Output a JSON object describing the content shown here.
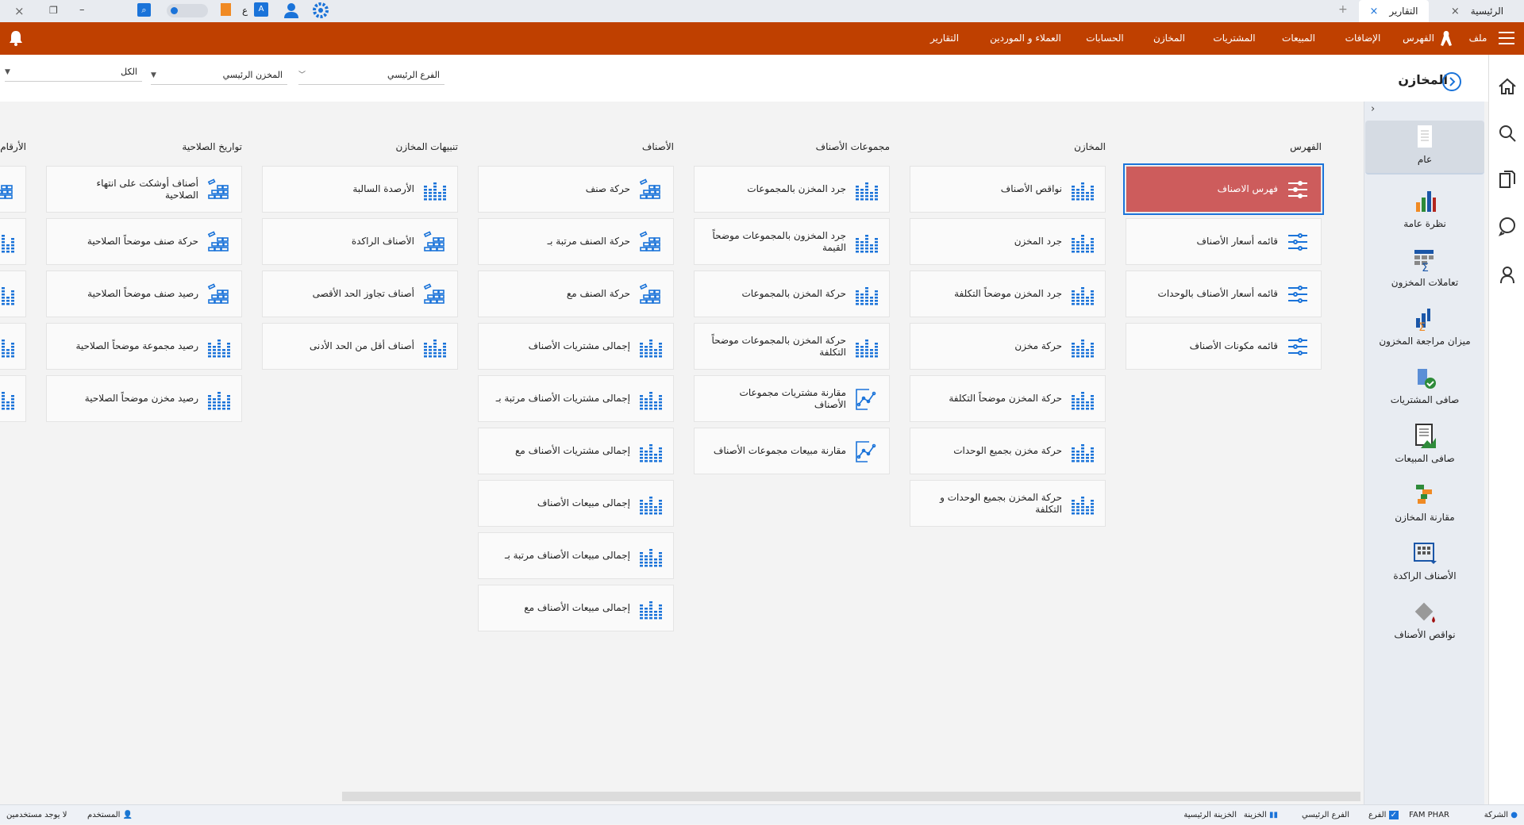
{
  "window": {
    "tabs": [
      {
        "label": "الرئيسية",
        "active": false
      },
      {
        "label": "التقارير",
        "active": true
      }
    ],
    "new_tab": "+",
    "close": "×",
    "restore": "❐",
    "minimize": "–",
    "lang_char": "ع"
  },
  "menu": {
    "items": [
      "ملف",
      "الفهرس",
      "الإضافات",
      "المبيعات",
      "المشتريات",
      "المخازن",
      "الحسابات",
      "العملاء و الموردين",
      "التقارير"
    ]
  },
  "page": {
    "title": "المخازن"
  },
  "filters": {
    "branch": "الفرع الرئيسي",
    "store": "المخزن الرئيسي",
    "all": "الكل"
  },
  "colors": {
    "accent": "#bf4000",
    "selected": "#cd5c5c",
    "icon_blue": "#1a73d9"
  },
  "columns": [
    {
      "title": "الفهرس",
      "items": [
        {
          "label": "فهرس الاصناف",
          "icon": "sliders",
          "selected": true
        },
        {
          "label": "قائمه أسعار الأصناف",
          "icon": "sliders"
        },
        {
          "label": "قائمه أسعار الأصناف بالوحدات",
          "icon": "sliders"
        },
        {
          "label": "قائمه مكونات الأصناف",
          "icon": "sliders"
        }
      ]
    },
    {
      "title": "المخازن",
      "items": [
        {
          "label": "نواقص الأصناف",
          "icon": "bars"
        },
        {
          "label": "جرد المخزن",
          "icon": "bars"
        },
        {
          "label": "جرد المخزن موضحاً التكلفة",
          "icon": "bars"
        },
        {
          "label": "حركة مخزن",
          "icon": "bars"
        },
        {
          "label": "حركة المخزن موضحاً التكلفة",
          "icon": "bars"
        },
        {
          "label": "حركة مخزن بجميع الوحدات",
          "icon": "bars"
        },
        {
          "label": "حركة المخزن بجميع الوحدات و التكلفة",
          "icon": "bars"
        }
      ]
    },
    {
      "title": "مجموعات الأصناف",
      "items": [
        {
          "label": "جرد المخزن بالمجموعات",
          "icon": "bars"
        },
        {
          "label": "جرد المخزون بالمجموعات موضحاً القيمة",
          "icon": "bars"
        },
        {
          "label": "حركة المخزن بالمجموعات",
          "icon": "bars"
        },
        {
          "label": "حركة المخزن بالمجموعات موضحاً التكلفة",
          "icon": "bars"
        },
        {
          "label": "مقارنة مشتريات مجموعات الأصناف",
          "icon": "linechart"
        },
        {
          "label": "مقارنة مبيعات مجموعات الأصناف",
          "icon": "linechart"
        }
      ]
    },
    {
      "title": "الأصناف",
      "items": [
        {
          "label": "حركة صنف",
          "icon": "blocks"
        },
        {
          "label": "حركة الصنف مرتبة بـ",
          "icon": "blocks"
        },
        {
          "label": "حركة الصنف مع",
          "icon": "blocks"
        },
        {
          "label": "إجمالى مشتريات الأصناف",
          "icon": "bars"
        },
        {
          "label": "إجمالى مشتريات الأصناف مرتبة بـ",
          "icon": "bars"
        },
        {
          "label": "إجمالى مشتريات الأصناف مع",
          "icon": "bars"
        },
        {
          "label": "إجمالى مبيعات الأصناف",
          "icon": "bars"
        },
        {
          "label": "إجمالى مبيعات الأصناف مرتبة بـ",
          "icon": "bars"
        },
        {
          "label": "إجمالى مبيعات الأصناف مع",
          "icon": "bars"
        }
      ]
    },
    {
      "title": "تنبيهات المخازن",
      "items": [
        {
          "label": "الأرصدة السالبة",
          "icon": "bars"
        },
        {
          "label": "الأصناف الراكدة",
          "icon": "blocks"
        },
        {
          "label": "أصناف تجاوز الحد الأقصى",
          "icon": "blocks"
        },
        {
          "label": "أصناف أقل من الحد الأدنى",
          "icon": "bars"
        }
      ]
    },
    {
      "title": "تواريخ الصلاحية",
      "items": [
        {
          "label": "أصناف أوشكت على انتهاء الصلاحية",
          "icon": "blocks"
        },
        {
          "label": "حركة صنف موضحاً الصلاحية",
          "icon": "blocks"
        },
        {
          "label": "رصيد صنف موضحاً الصلاحية",
          "icon": "blocks"
        },
        {
          "label": "رصيد مجموعة موضحاً الصلاحية",
          "icon": "bars"
        },
        {
          "label": "رصيد مخزن موضحاً الصلاحية",
          "icon": "bars"
        }
      ]
    },
    {
      "title": "الأرقام",
      "items": [
        {
          "label": "",
          "icon": "blocks"
        },
        {
          "label": "",
          "icon": "bars"
        },
        {
          "label": "",
          "icon": "bars"
        },
        {
          "label": "",
          "icon": "bars"
        },
        {
          "label": "",
          "icon": "bars"
        }
      ]
    }
  ],
  "sidebar": {
    "collapse": "›",
    "items": [
      {
        "label": "عام",
        "icon": "document-icon",
        "selected": true
      },
      {
        "label": "نظرة عامة",
        "icon": "bar-chart-icon"
      },
      {
        "label": "تعاملات المخزون",
        "icon": "table-sum-icon"
      },
      {
        "label": "ميزان مراجعة المخزون",
        "icon": "chart-sum-icon"
      },
      {
        "label": "صافى المشتريات",
        "icon": "box-check-icon"
      },
      {
        "label": "صافى المبيعات",
        "icon": "report-chart-icon"
      },
      {
        "label": "مقارنة المخازن",
        "icon": "compare-icon"
      },
      {
        "label": "الأصناف الراكدة",
        "icon": "grid-down-icon"
      },
      {
        "label": "نواقص الأصناف",
        "icon": "paint-bucket-icon"
      }
    ]
  },
  "status": {
    "company_label": "الشركة",
    "company": "FAM PHAR",
    "branch_label": "الفرع",
    "branch": "الفرع الرئيسي",
    "treasury_label": "الخزينة",
    "treasury": "الخزينة الرئيسية",
    "user_label": "المستخدم",
    "users": "لا يوجد مستخدمين"
  }
}
